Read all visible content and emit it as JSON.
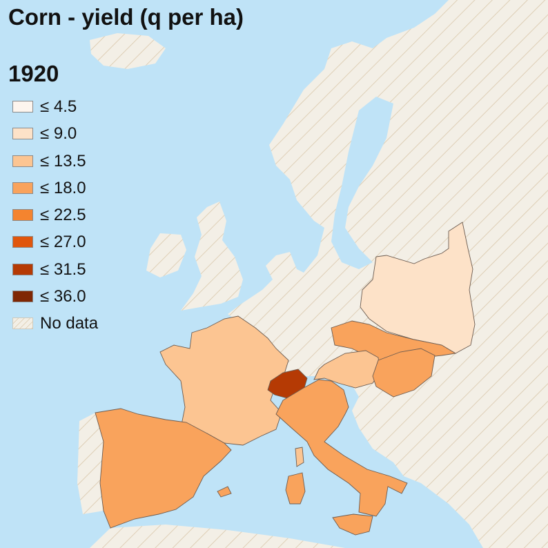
{
  "title": "Corn - yield (q per ha)",
  "year": "1920",
  "legend": [
    {
      "label": "≤ 4.5",
      "color": "#fdf5ee"
    },
    {
      "label": "≤ 9.0",
      "color": "#fde2c8"
    },
    {
      "label": "≤ 13.5",
      "color": "#fcc592"
    },
    {
      "label": "≤ 18.0",
      "color": "#f9a35c"
    },
    {
      "label": "≤ 22.5",
      "color": "#f4842f"
    },
    {
      "label": "≤ 27.0",
      "color": "#e0560d"
    },
    {
      "label": "≤ 31.5",
      "color": "#b53a04"
    },
    {
      "label": "≤ 36.0",
      "color": "#7f2704"
    },
    {
      "label": "No data",
      "color": "hatched"
    }
  ],
  "colors": {
    "sea": "#bfe3f7",
    "no_data_land": "#f3efe6",
    "hatch": "#d9c7aa"
  }
}
